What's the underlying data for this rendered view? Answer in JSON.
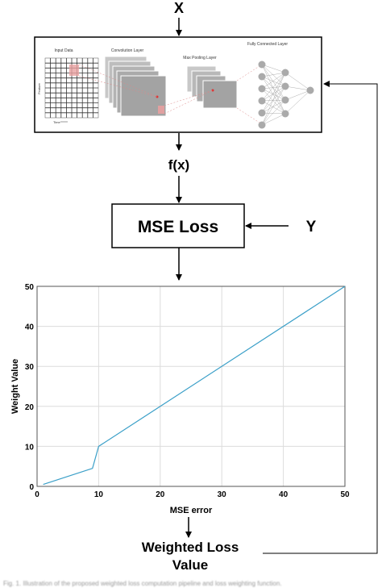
{
  "labels": {
    "input_x": "X",
    "fx": "f(x)",
    "loss_box": "MSE Loss",
    "input_y": "Y",
    "output": [
      "Weighted Loss",
      "Value"
    ]
  },
  "network": {
    "input_data": "Input Data",
    "conv_layer": "Convolution Layer",
    "pool_layer": "Max Pooling Layer",
    "fc_layer": "Fully Connected Layer",
    "y_axis": "Feature",
    "x_axis": "Time"
  },
  "colors": {
    "line": "#3a9fc8",
    "grid": "#dcdcdc",
    "layer": "#b0b0b0",
    "highlight": "#e8a0a0"
  },
  "chart_data": {
    "type": "line",
    "title": "",
    "xlabel": "MSE error",
    "ylabel": "Weight Value",
    "xlim": [
      0,
      50
    ],
    "ylim": [
      0,
      50
    ],
    "xticks": [
      0,
      10,
      20,
      30,
      40,
      50
    ],
    "yticks": [
      0,
      10,
      20,
      30,
      40,
      50
    ],
    "grid": true,
    "series": [
      {
        "x": [
          1,
          9,
          10,
          50
        ],
        "y": [
          0.5,
          4.5,
          10,
          50
        ]
      }
    ]
  }
}
